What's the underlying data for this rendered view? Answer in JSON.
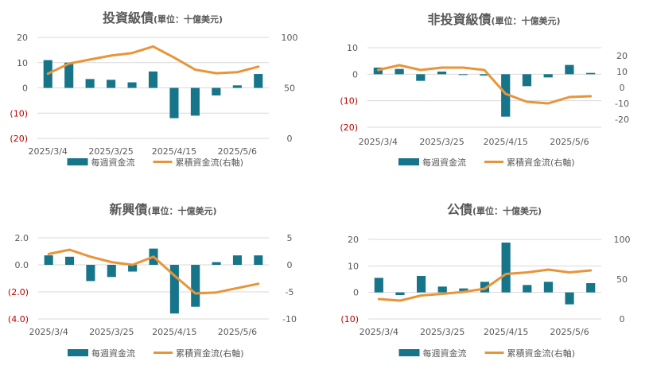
{
  "colors": {
    "bar": "#17758a",
    "line": "#e8953a",
    "text": "#595959",
    "negative": "#c00000",
    "grid": "#d9d9d9"
  },
  "chart_data": [
    {
      "type": "bar",
      "title": "投資級債",
      "subtitle": "(單位：十億美元)",
      "categories": [
        "2025/3/4",
        "2025/3/11",
        "2025/3/18",
        "2025/3/25",
        "2025/4/1",
        "2025/4/8",
        "2025/4/15",
        "2025/4/22",
        "2025/4/29",
        "2025/5/6",
        "2025/5/13"
      ],
      "xtick_labels": [
        "2025/3/4",
        "2025/3/25",
        "2025/4/15",
        "2025/5/6"
      ],
      "ylim": [
        -20,
        20
      ],
      "yticks": [
        {
          "v": 20,
          "label": "20",
          "neg": false
        },
        {
          "v": 10,
          "label": "10",
          "neg": false
        },
        {
          "v": 0,
          "label": "0",
          "neg": false
        },
        {
          "v": -10,
          "label": "(10)",
          "neg": true
        },
        {
          "v": -20,
          "label": "(20)",
          "neg": true
        }
      ],
      "y2lim": [
        0,
        100
      ],
      "y2ticks": [
        {
          "v": 100,
          "label": "100"
        },
        {
          "v": 50,
          "label": "50"
        },
        {
          "v": 0,
          "label": "0"
        }
      ],
      "series": [
        {
          "name": "每週資金流",
          "axis": "left",
          "values": [
            11,
            10,
            3.5,
            3.2,
            2.2,
            6.5,
            -12,
            -11,
            -3,
            1,
            5.5
          ]
        },
        {
          "name": "累積資金流(右軸)",
          "axis": "right",
          "values": [
            64,
            74,
            78,
            82,
            84.5,
            91,
            80,
            68,
            64.5,
            65.5,
            71
          ]
        }
      ]
    },
    {
      "type": "bar",
      "title": "非投資級債",
      "subtitle": "(單位：十億美元)",
      "categories": [
        "2025/3/4",
        "2025/3/11",
        "2025/3/18",
        "2025/3/25",
        "2025/4/1",
        "2025/4/8",
        "2025/4/15",
        "2025/4/22",
        "2025/4/29",
        "2025/5/6",
        "2025/5/13"
      ],
      "xtick_labels": [
        "2025/3/4",
        "2025/3/25",
        "2025/4/15",
        "2025/5/6"
      ],
      "ylim": [
        -20,
        10
      ],
      "yticks": [
        {
          "v": 10,
          "label": "10",
          "neg": false
        },
        {
          "v": 0,
          "label": "0",
          "neg": false
        },
        {
          "v": -10,
          "label": "(10)",
          "neg": true
        },
        {
          "v": -20,
          "label": "(20)",
          "neg": true
        }
      ],
      "y2lim": [
        -25,
        25
      ],
      "y2ticks": [
        {
          "v": 20,
          "label": "20"
        },
        {
          "v": 10,
          "label": "10"
        },
        {
          "v": 0,
          "label": "0"
        },
        {
          "v": -10,
          "label": "-10"
        },
        {
          "v": -20,
          "label": "-20"
        }
      ],
      "series": [
        {
          "name": "每週資金流",
          "axis": "left",
          "values": [
            2.5,
            2,
            -2.5,
            1,
            -0.3,
            -0.5,
            -16,
            -4.5,
            -1.2,
            3.5,
            0.5
          ]
        },
        {
          "name": "累積資金流(右軸)",
          "axis": "right",
          "values": [
            11,
            14,
            11,
            12.5,
            12.5,
            11,
            -4,
            -9,
            -10,
            -6,
            -5.5
          ]
        }
      ]
    },
    {
      "type": "bar",
      "title": "新興債",
      "subtitle": "(單位：十億美元)",
      "categories": [
        "2025/3/4",
        "2025/3/11",
        "2025/3/18",
        "2025/3/25",
        "2025/4/1",
        "2025/4/8",
        "2025/4/15",
        "2025/4/22",
        "2025/4/29",
        "2025/5/6",
        "2025/5/13"
      ],
      "xtick_labels": [
        "2025/3/4",
        "2025/3/25",
        "2025/4/15",
        "2025/5/6"
      ],
      "ylim": [
        -4,
        2
      ],
      "yticks": [
        {
          "v": 2,
          "label": "2.0",
          "neg": false
        },
        {
          "v": 0,
          "label": "0.0",
          "neg": false
        },
        {
          "v": -2,
          "label": "(2.0)",
          "neg": true
        },
        {
          "v": -4,
          "label": "(4.0)",
          "neg": true
        }
      ],
      "y2lim": [
        -10,
        5
      ],
      "y2ticks": [
        {
          "v": 5,
          "label": "5"
        },
        {
          "v": 0,
          "label": "0"
        },
        {
          "v": -5,
          "label": "-5"
        },
        {
          "v": -10,
          "label": "-10"
        }
      ],
      "series": [
        {
          "name": "每週資金流",
          "axis": "left",
          "values": [
            0.7,
            0.6,
            -1.2,
            -0.9,
            -0.5,
            1.2,
            -3.6,
            -3.1,
            0.2,
            0.7,
            0.7
          ]
        },
        {
          "name": "累積資金流(右軸)",
          "axis": "right",
          "values": [
            2,
            2.8,
            1.5,
            0.5,
            0,
            1.5,
            -2,
            -5.3,
            -5.1,
            -4.3,
            -3.5
          ]
        }
      ]
    },
    {
      "type": "bar",
      "title": "公債",
      "subtitle": "(單位：十億美元)",
      "categories": [
        "2025/3/4",
        "2025/3/11",
        "2025/3/18",
        "2025/3/25",
        "2025/4/1",
        "2025/4/8",
        "2025/4/15",
        "2025/4/22",
        "2025/4/29",
        "2025/5/6",
        "2025/5/13"
      ],
      "xtick_labels": [
        "2025/3/4",
        "2025/3/25",
        "2025/4/15",
        "2025/5/6"
      ],
      "ylim": [
        -10,
        20
      ],
      "yticks": [
        {
          "v": 20,
          "label": "20",
          "neg": false
        },
        {
          "v": 10,
          "label": "10",
          "neg": false
        },
        {
          "v": 0,
          "label": "0",
          "neg": false
        },
        {
          "v": -10,
          "label": "(10)",
          "neg": true
        }
      ],
      "y2lim": [
        0,
        100
      ],
      "y2ticks": [
        {
          "v": 100,
          "label": "100"
        },
        {
          "v": 50,
          "label": "50"
        },
        {
          "v": 0,
          "label": "0"
        }
      ],
      "series": [
        {
          "name": "每週資金流",
          "axis": "left",
          "values": [
            5.5,
            -1,
            6.2,
            2.2,
            1.5,
            4,
            18.8,
            2.8,
            4,
            -4.5,
            3.5
          ]
        },
        {
          "name": "累積資金流(右軸)",
          "axis": "right",
          "values": [
            25,
            23,
            29.5,
            31.5,
            34,
            38,
            56.5,
            58.5,
            62,
            58.5,
            61
          ]
        }
      ]
    }
  ]
}
